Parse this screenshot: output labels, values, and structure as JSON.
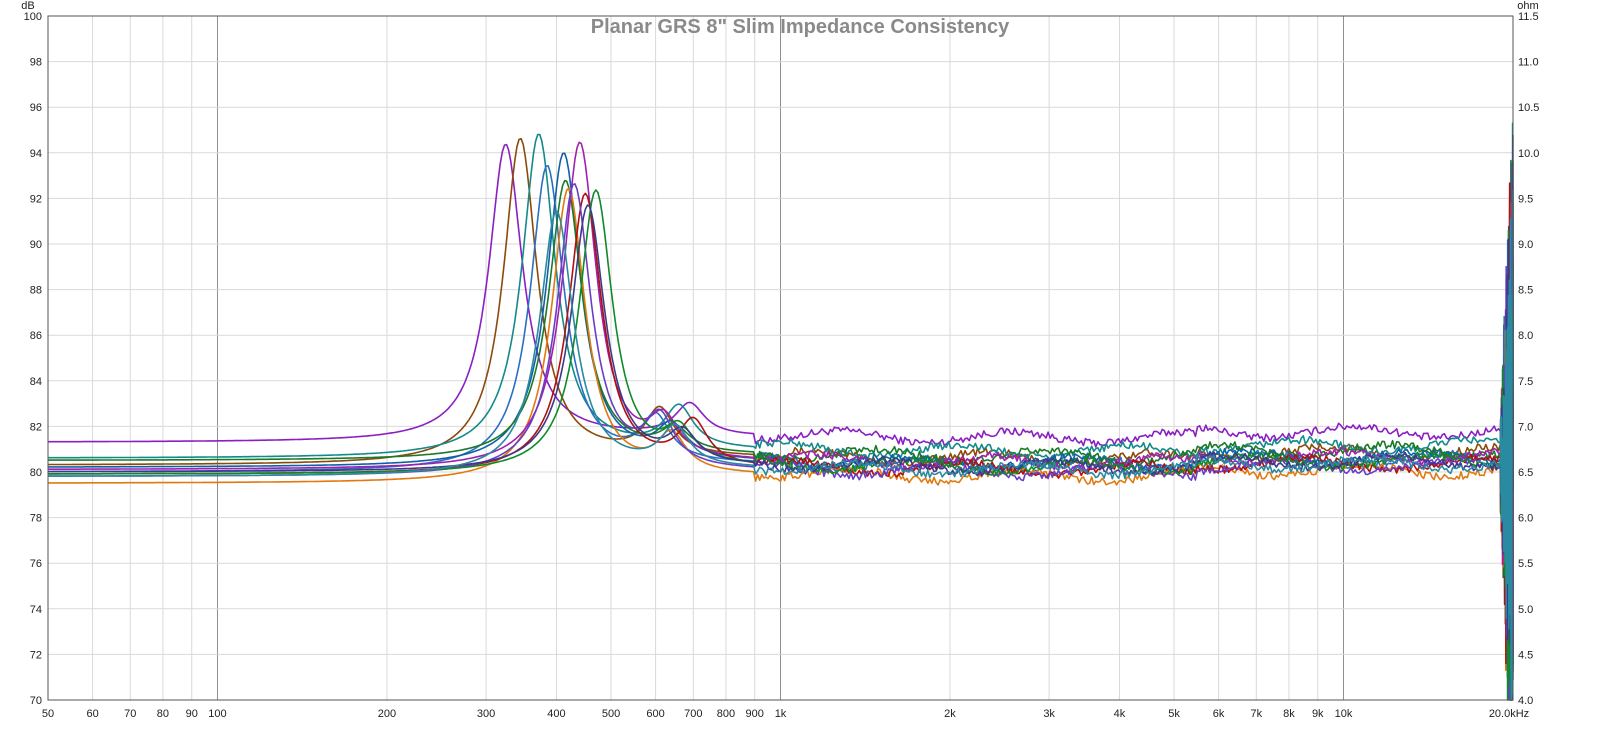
{
  "chart_data": {
    "type": "line",
    "title": "Planar GRS 8\" Slim Impedance Consistency",
    "y_unit_left": "dB",
    "y_unit_right": "ohm",
    "x_scale": "log",
    "xlim": [
      50,
      20000
    ],
    "ylim": [
      70,
      100
    ],
    "ylim_right": [
      4.0,
      11.5
    ],
    "x_ticks": [
      50,
      60,
      70,
      80,
      90,
      100,
      200,
      300,
      400,
      500,
      600,
      700,
      800,
      900,
      1000,
      2000,
      3000,
      4000,
      5000,
      6000,
      7000,
      8000,
      9000,
      10000,
      20000
    ],
    "x_tick_labels": [
      "50",
      "60",
      "70",
      "80",
      "90",
      "100",
      "200",
      "300",
      "400",
      "500",
      "600",
      "700",
      "800",
      "900",
      "1k",
      "2k",
      "3k",
      "4k",
      "5k",
      "6k",
      "7k",
      "8k",
      "9k",
      "10k",
      "20.0kHz"
    ],
    "y_ticks_left": [
      70,
      72,
      74,
      76,
      78,
      80,
      82,
      84,
      86,
      88,
      90,
      92,
      94,
      96,
      98,
      100
    ],
    "y_tick_labels_left": [
      "70",
      "72",
      "74",
      "76",
      "78",
      "80",
      "82",
      "84",
      "86",
      "88",
      "90",
      "92",
      "94",
      "96",
      "98",
      "100"
    ],
    "y_tick_labels_right": [
      "4.0",
      "4.5",
      "5.0",
      "5.5",
      "6.0",
      "6.5",
      "7.0",
      "7.5",
      "8.0",
      "8.5",
      "9.0",
      "9.5",
      "10.0",
      "10.5",
      "11.0",
      "11.5"
    ],
    "grid": true,
    "legend": "none",
    "series": [
      {
        "color": "#8a1fc4",
        "baseline": 81.3,
        "resonance_hz": 325,
        "peak": 94.3,
        "plateau": 81.5,
        "hump_hz": 690,
        "hump": 82.9
      },
      {
        "color": "#8b4a0a",
        "baseline": 80.3,
        "resonance_hz": 345,
        "peak": 94.5,
        "plateau": 80.6,
        "hump_hz": 610,
        "hump": 82.6
      },
      {
        "color": "#138a8a",
        "baseline": 80.6,
        "resonance_hz": 372,
        "peak": 94.7,
        "plateau": 80.9,
        "hump_hz": 660,
        "hump": 82.7
      },
      {
        "color": "#2a6fc4",
        "baseline": 80.0,
        "resonance_hz": 385,
        "peak": 93.3,
        "plateau": 80.3,
        "hump_hz": 600,
        "hump": 82.2
      },
      {
        "color": "#1060a8",
        "baseline": 80.2,
        "resonance_hz": 412,
        "peak": 93.9,
        "plateau": 80.4,
        "hump_hz": 640,
        "hump": 81.8
      },
      {
        "color": "#1a7a2a",
        "baseline": 80.5,
        "resonance_hz": 415,
        "peak": 92.7,
        "plateau": 80.7,
        "hump_hz": 650,
        "hump": 81.7
      },
      {
        "color": "#e07a10",
        "baseline": 79.5,
        "resonance_hz": 420,
        "peak": 92.3,
        "plateau": 79.8,
        "hump_hz": 640,
        "hump": 81.4
      },
      {
        "color": "#a020b0",
        "baseline": 80.1,
        "resonance_hz": 440,
        "peak": 94.3,
        "plateau": 80.4,
        "hump_hz": 620,
        "hump": 82.0
      },
      {
        "color": "#b01010",
        "baseline": 79.9,
        "resonance_hz": 450,
        "peak": 92.1,
        "plateau": 80.1,
        "hump_hz": 700,
        "hump": 82.0
      },
      {
        "color": "#6a3ec4",
        "baseline": 79.8,
        "resonance_hz": 430,
        "peak": 92.5,
        "plateau": 80.0,
        "hump_hz": 610,
        "hump": 82.1
      },
      {
        "color": "#0e8a2a",
        "baseline": 79.9,
        "resonance_hz": 470,
        "peak": 92.2,
        "plateau": 80.2,
        "hump_hz": 660,
        "hump": 81.6
      },
      {
        "color": "#3a3a8a",
        "baseline": 80.0,
        "resonance_hz": 455,
        "peak": 91.6,
        "plateau": 80.2,
        "hump_hz": 670,
        "hump": 81.5
      },
      {
        "color": "#2a8aa0",
        "baseline": 79.8,
        "resonance_hz": 400,
        "peak": 91.3,
        "plateau": 80.1,
        "hump_hz": 650,
        "hump": 81.8
      }
    ]
  }
}
